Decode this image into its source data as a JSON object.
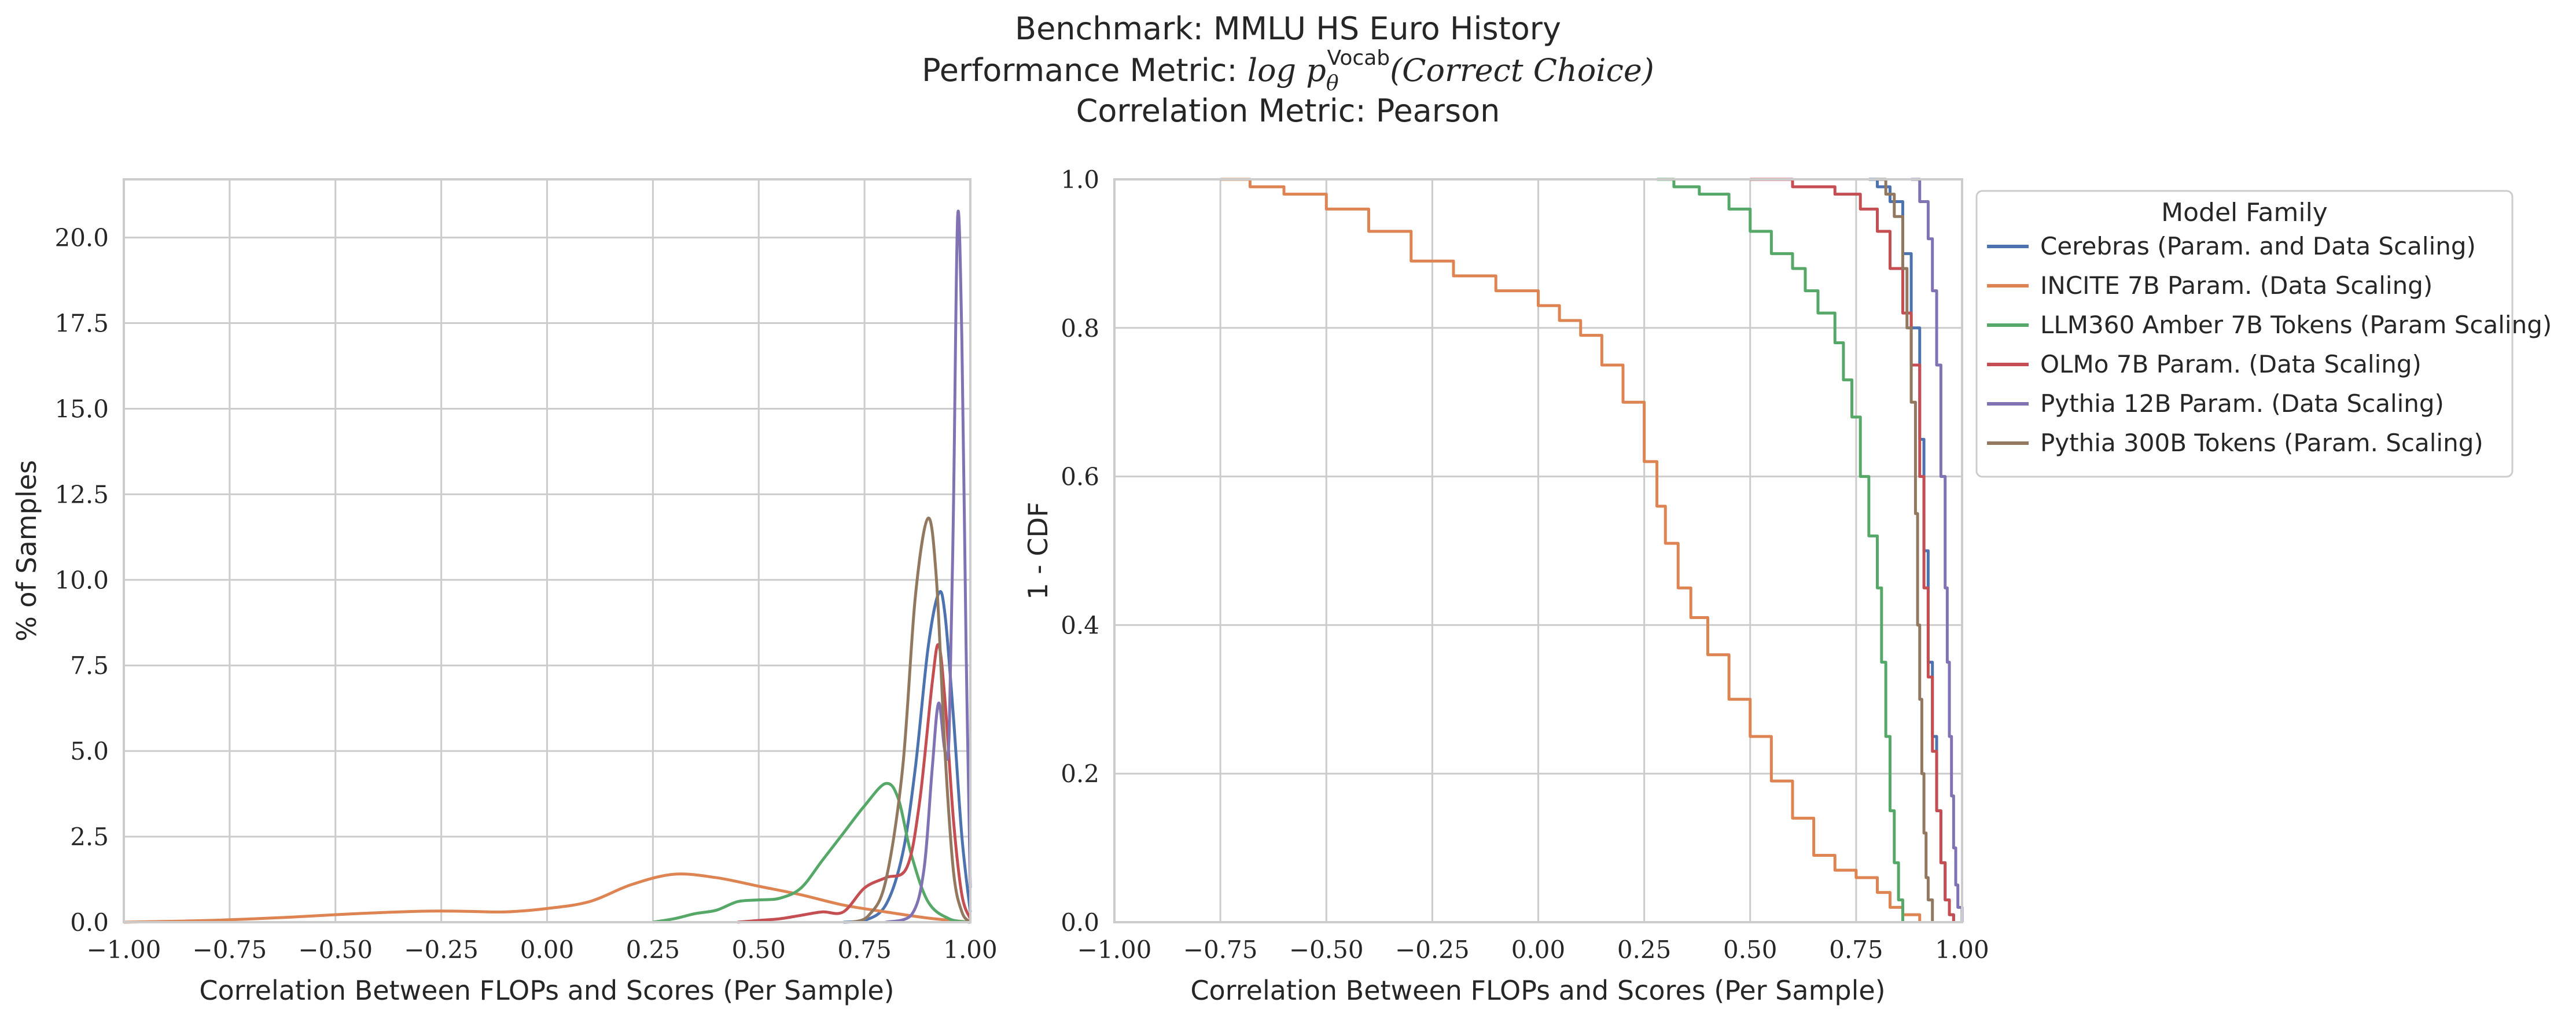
{
  "figure": {
    "title_line1": "Benchmark: MMLU HS Euro History",
    "title_line2_prefix": "Performance Metric: ",
    "title_line2_math": "log p",
    "title_line2_sub": "θ",
    "title_line2_sup": "Vocab",
    "title_line2_suffix": "(Correct Choice)",
    "title_line3": "Correlation Metric: Pearson"
  },
  "legend": {
    "title": "Model Family",
    "placement": "outside-right-top"
  },
  "chart_data": [
    {
      "type": "line",
      "kind": "kde",
      "xlabel": "Correlation Between FLOPs and Scores (Per Sample)",
      "ylabel": "% of Samples",
      "xlim": [
        -1.0,
        1.0
      ],
      "ylim": [
        0,
        21.7
      ],
      "xticks": [
        "−1.00",
        "−0.75",
        "−0.50",
        "−0.25",
        "0.00",
        "0.25",
        "0.50",
        "0.75",
        "1.00"
      ],
      "yticks": [
        "0.0",
        "2.5",
        "5.0",
        "7.5",
        "10.0",
        "12.5",
        "15.0",
        "17.5",
        "20.0"
      ],
      "grid": true,
      "series": [
        {
          "name": "Cerebras (Param. and Data Scaling)",
          "color": "#4c72b0",
          "points": [
            [
              0.7,
              0
            ],
            [
              0.75,
              0.05
            ],
            [
              0.8,
              0.5
            ],
            [
              0.84,
              2
            ],
            [
              0.87,
              4.5
            ],
            [
              0.9,
              8
            ],
            [
              0.925,
              9.6
            ],
            [
              0.94,
              9
            ],
            [
              0.96,
              6
            ],
            [
              0.98,
              2.5
            ],
            [
              1.0,
              0.3
            ]
          ]
        },
        {
          "name": "INCITE 7B Param. (Data Scaling)",
          "color": "#dd8452",
          "points": [
            [
              -1.0,
              0
            ],
            [
              -0.8,
              0.05
            ],
            [
              -0.6,
              0.15
            ],
            [
              -0.45,
              0.25
            ],
            [
              -0.3,
              0.32
            ],
            [
              -0.2,
              0.32
            ],
            [
              -0.1,
              0.3
            ],
            [
              0.0,
              0.4
            ],
            [
              0.1,
              0.6
            ],
            [
              0.2,
              1.1
            ],
            [
              0.3,
              1.4
            ],
            [
              0.4,
              1.3
            ],
            [
              0.5,
              1.05
            ],
            [
              0.6,
              0.8
            ],
            [
              0.7,
              0.5
            ],
            [
              0.8,
              0.3
            ],
            [
              0.9,
              0.12
            ],
            [
              1.0,
              0
            ]
          ]
        },
        {
          "name": "LLM360 Amber 7B Tokens (Param Scaling)",
          "color": "#55a868",
          "points": [
            [
              0.25,
              0
            ],
            [
              0.3,
              0.1
            ],
            [
              0.35,
              0.25
            ],
            [
              0.4,
              0.35
            ],
            [
              0.45,
              0.6
            ],
            [
              0.5,
              0.65
            ],
            [
              0.55,
              0.7
            ],
            [
              0.6,
              1.0
            ],
            [
              0.65,
              1.8
            ],
            [
              0.7,
              2.6
            ],
            [
              0.75,
              3.4
            ],
            [
              0.8,
              4.05
            ],
            [
              0.83,
              3.6
            ],
            [
              0.86,
              2
            ],
            [
              0.9,
              0.6
            ],
            [
              0.95,
              0.1
            ],
            [
              1.0,
              0
            ]
          ]
        },
        {
          "name": "OLMo 7B Param. (Data Scaling)",
          "color": "#c44e52",
          "points": [
            [
              0.45,
              0
            ],
            [
              0.5,
              0.05
            ],
            [
              0.55,
              0.1
            ],
            [
              0.6,
              0.2
            ],
            [
              0.65,
              0.3
            ],
            [
              0.7,
              0.3
            ],
            [
              0.75,
              1
            ],
            [
              0.8,
              1.3
            ],
            [
              0.85,
              1.6
            ],
            [
              0.88,
              3.5
            ],
            [
              0.91,
              7
            ],
            [
              0.925,
              8.1
            ],
            [
              0.94,
              6.5
            ],
            [
              0.96,
              3
            ],
            [
              0.98,
              0.8
            ],
            [
              1.0,
              0.1
            ]
          ]
        },
        {
          "name": "Pythia 12B Param. (Data Scaling)",
          "color": "#8172b3",
          "points": [
            [
              0.8,
              0
            ],
            [
              0.86,
              0.2
            ],
            [
              0.89,
              1.5
            ],
            [
              0.91,
              4.5
            ],
            [
              0.925,
              6.4
            ],
            [
              0.94,
              5
            ],
            [
              0.95,
              5.5
            ],
            [
              0.96,
              12
            ],
            [
              0.97,
              20.6
            ],
            [
              0.98,
              17
            ],
            [
              0.99,
              8
            ],
            [
              1.0,
              1
            ]
          ]
        },
        {
          "name": "Pythia 300B Tokens (Param. Scaling)",
          "color": "#937860",
          "points": [
            [
              0.72,
              0
            ],
            [
              0.76,
              0.2
            ],
            [
              0.8,
              1.2
            ],
            [
              0.84,
              4.5
            ],
            [
              0.87,
              9.5
            ],
            [
              0.9,
              11.8
            ],
            [
              0.92,
              10
            ],
            [
              0.94,
              5
            ],
            [
              0.96,
              1.5
            ],
            [
              0.98,
              0.3
            ],
            [
              1.0,
              0
            ]
          ]
        }
      ]
    },
    {
      "type": "line",
      "kind": "step",
      "xlabel": "Correlation Between FLOPs and Scores (Per Sample)",
      "ylabel": "1 - CDF",
      "xlim": [
        -1.0,
        1.0
      ],
      "ylim": [
        0.0,
        1.0
      ],
      "xticks": [
        "−1.00",
        "−0.75",
        "−0.50",
        "−0.25",
        "0.00",
        "0.25",
        "0.50",
        "0.75",
        "1.00"
      ],
      "yticks": [
        "0.0",
        "0.2",
        "0.4",
        "0.6",
        "0.8",
        "1.0"
      ],
      "grid": true,
      "series": [
        {
          "name": "Cerebras (Param. and Data Scaling)",
          "color": "#4c72b0",
          "points": [
            [
              0.78,
              1.0
            ],
            [
              0.8,
              0.99
            ],
            [
              0.83,
              0.97
            ],
            [
              0.86,
              0.9
            ],
            [
              0.88,
              0.8
            ],
            [
              0.9,
              0.65
            ],
            [
              0.91,
              0.5
            ],
            [
              0.92,
              0.35
            ],
            [
              0.93,
              0.25
            ],
            [
              0.94,
              0.15
            ],
            [
              0.95,
              0.08
            ],
            [
              0.96,
              0.03
            ],
            [
              0.97,
              0.01
            ],
            [
              0.98,
              0.0
            ]
          ]
        },
        {
          "name": "INCITE 7B Param. (Data Scaling)",
          "color": "#dd8452",
          "points": [
            [
              -0.75,
              1.0
            ],
            [
              -0.68,
              0.99
            ],
            [
              -0.6,
              0.98
            ],
            [
              -0.5,
              0.96
            ],
            [
              -0.4,
              0.93
            ],
            [
              -0.3,
              0.89
            ],
            [
              -0.2,
              0.87
            ],
            [
              -0.1,
              0.85
            ],
            [
              0.0,
              0.83
            ],
            [
              0.05,
              0.81
            ],
            [
              0.1,
              0.79
            ],
            [
              0.15,
              0.75
            ],
            [
              0.2,
              0.7
            ],
            [
              0.25,
              0.62
            ],
            [
              0.28,
              0.56
            ],
            [
              0.3,
              0.51
            ],
            [
              0.33,
              0.45
            ],
            [
              0.36,
              0.41
            ],
            [
              0.4,
              0.36
            ],
            [
              0.45,
              0.3
            ],
            [
              0.5,
              0.25
            ],
            [
              0.55,
              0.19
            ],
            [
              0.6,
              0.14
            ],
            [
              0.65,
              0.09
            ],
            [
              0.7,
              0.07
            ],
            [
              0.75,
              0.06
            ],
            [
              0.8,
              0.04
            ],
            [
              0.83,
              0.02
            ],
            [
              0.86,
              0.01
            ],
            [
              0.9,
              0.0
            ]
          ]
        },
        {
          "name": "LLM360 Amber 7B Tokens (Param Scaling)",
          "color": "#55a868",
          "points": [
            [
              0.28,
              1.0
            ],
            [
              0.32,
              0.99
            ],
            [
              0.38,
              0.98
            ],
            [
              0.45,
              0.96
            ],
            [
              0.5,
              0.93
            ],
            [
              0.55,
              0.9
            ],
            [
              0.6,
              0.88
            ],
            [
              0.63,
              0.85
            ],
            [
              0.66,
              0.82
            ],
            [
              0.7,
              0.78
            ],
            [
              0.72,
              0.73
            ],
            [
              0.74,
              0.68
            ],
            [
              0.76,
              0.6
            ],
            [
              0.78,
              0.52
            ],
            [
              0.8,
              0.45
            ],
            [
              0.81,
              0.35
            ],
            [
              0.82,
              0.25
            ],
            [
              0.83,
              0.15
            ],
            [
              0.84,
              0.08
            ],
            [
              0.85,
              0.03
            ],
            [
              0.86,
              0.0
            ]
          ]
        },
        {
          "name": "OLMo 7B Param. (Data Scaling)",
          "color": "#c44e52",
          "points": [
            [
              0.5,
              1.0
            ],
            [
              0.6,
              0.99
            ],
            [
              0.7,
              0.98
            ],
            [
              0.76,
              0.96
            ],
            [
              0.8,
              0.93
            ],
            [
              0.83,
              0.88
            ],
            [
              0.86,
              0.82
            ],
            [
              0.88,
              0.75
            ],
            [
              0.9,
              0.6
            ],
            [
              0.91,
              0.45
            ],
            [
              0.92,
              0.33
            ],
            [
              0.93,
              0.23
            ],
            [
              0.94,
              0.15
            ],
            [
              0.95,
              0.08
            ],
            [
              0.96,
              0.03
            ],
            [
              0.97,
              0.01
            ],
            [
              0.98,
              0.0
            ]
          ]
        },
        {
          "name": "Pythia 12B Param. (Data Scaling)",
          "color": "#8172b3",
          "points": [
            [
              0.88,
              1.0
            ],
            [
              0.9,
              0.97
            ],
            [
              0.92,
              0.92
            ],
            [
              0.93,
              0.85
            ],
            [
              0.94,
              0.75
            ],
            [
              0.95,
              0.6
            ],
            [
              0.96,
              0.45
            ],
            [
              0.965,
              0.35
            ],
            [
              0.97,
              0.25
            ],
            [
              0.975,
              0.17
            ],
            [
              0.98,
              0.1
            ],
            [
              0.985,
              0.05
            ],
            [
              0.99,
              0.02
            ],
            [
              1.0,
              0.0
            ]
          ]
        },
        {
          "name": "Pythia 300B Tokens (Param. Scaling)",
          "color": "#937860",
          "points": [
            [
              0.8,
              1.0
            ],
            [
              0.82,
              0.98
            ],
            [
              0.84,
              0.95
            ],
            [
              0.86,
              0.88
            ],
            [
              0.87,
              0.8
            ],
            [
              0.88,
              0.7
            ],
            [
              0.89,
              0.55
            ],
            [
              0.895,
              0.4
            ],
            [
              0.9,
              0.3
            ],
            [
              0.905,
              0.2
            ],
            [
              0.91,
              0.12
            ],
            [
              0.915,
              0.06
            ],
            [
              0.92,
              0.03
            ],
            [
              0.93,
              0.0
            ]
          ]
        }
      ]
    }
  ]
}
